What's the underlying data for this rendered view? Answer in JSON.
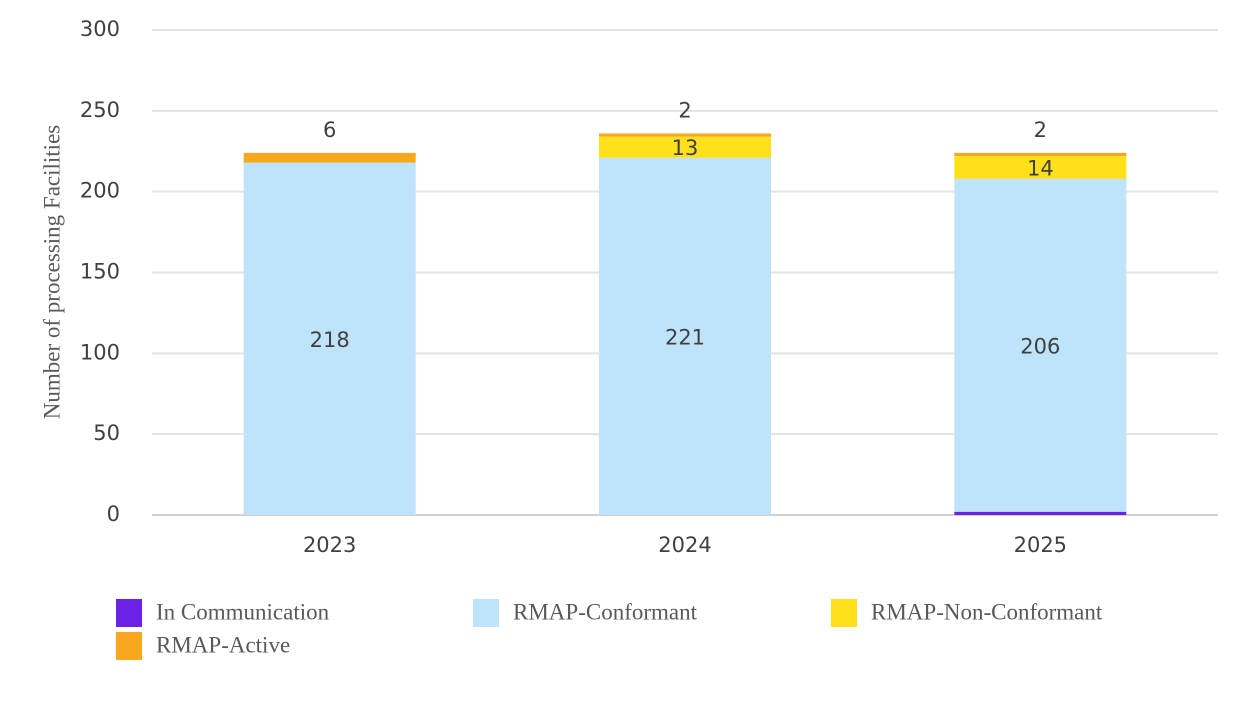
{
  "chart_data": {
    "type": "stacked-bar",
    "y_label": "Number of processing Facilities",
    "categories": [
      "2023",
      "2024",
      "2025"
    ],
    "series": [
      {
        "name": "In Communication",
        "color": "#6b22e6",
        "values": [
          null,
          null,
          2
        ]
      },
      {
        "name": "RMAP-Conformant",
        "color": "#bfe3fb",
        "values": [
          218,
          221,
          206
        ]
      },
      {
        "name": "RMAP-Non-Conformant",
        "color": "#ffe01a",
        "values": [
          null,
          13,
          14
        ]
      },
      {
        "name": "RMAP-Active",
        "color": "#f9a81d",
        "values": [
          6,
          2,
          2
        ]
      }
    ],
    "ylim": [
      0,
      300
    ],
    "yticks": [
      0,
      50,
      100,
      150,
      200,
      250,
      300
    ],
    "grid": true
  }
}
